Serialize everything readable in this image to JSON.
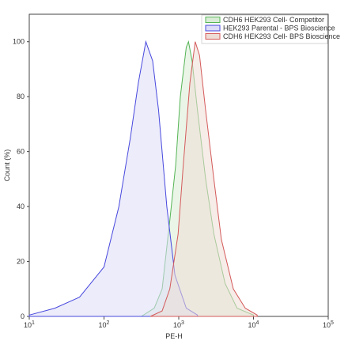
{
  "chart_data": {
    "type": "area",
    "x_label": "PE-H",
    "y_label": "Count (%)",
    "xscale": "log",
    "xlim": [
      10,
      100000
    ],
    "xticks": [
      {
        "value": 10,
        "label": "10",
        "exponent": "1"
      },
      {
        "value": 100,
        "label": "10",
        "exponent": "2"
      },
      {
        "value": 1000,
        "label": "10",
        "exponent": "3"
      },
      {
        "value": 10000,
        "label": "10",
        "exponent": "4"
      },
      {
        "value": 100000,
        "label": "10",
        "exponent": "5"
      }
    ],
    "ylim": [
      0,
      110
    ],
    "yticks": [
      0,
      20,
      40,
      60,
      80,
      100
    ],
    "legend": "upper right",
    "series": [
      {
        "name": "CDH6 HEK293 Cell- Competitor",
        "color": "#55b455",
        "fill": "#d9ecd6",
        "x": [
          316,
          470,
          600,
          760,
          910,
          1050,
          1260,
          1350,
          1510,
          1780,
          2290,
          2950,
          4170,
          6030,
          10000
        ],
        "values": [
          0,
          3,
          10,
          35,
          55,
          80,
          98,
          100,
          93,
          75,
          50,
          30,
          12,
          3,
          0.5
        ]
      },
      {
        "name": "HEK293 Parental - BPS Bioscience",
        "color": "#4848de",
        "fill": "#dcdcf8",
        "x": [
          10,
          22,
          47,
          100,
          158,
          225,
          288,
          363,
          447,
          537,
          692,
          890,
          1260,
          1780
        ],
        "values": [
          0.5,
          3,
          7,
          18,
          40,
          65,
          85,
          100,
          93,
          75,
          40,
          15,
          3,
          0.5
        ]
      },
      {
        "name": "CDH6 HEK293 Cell- BPS Bioscience",
        "color": "#d45a5a",
        "fill": "#eedcd6",
        "x": [
          417,
          600,
          760,
          980,
          1150,
          1410,
          1660,
          1900,
          2290,
          2950,
          3720,
          5370,
          7760,
          11200
        ],
        "values": [
          0,
          2,
          10,
          30,
          55,
          85,
          100,
          95,
          75,
          50,
          28,
          10,
          3,
          0.5
        ]
      }
    ]
  }
}
